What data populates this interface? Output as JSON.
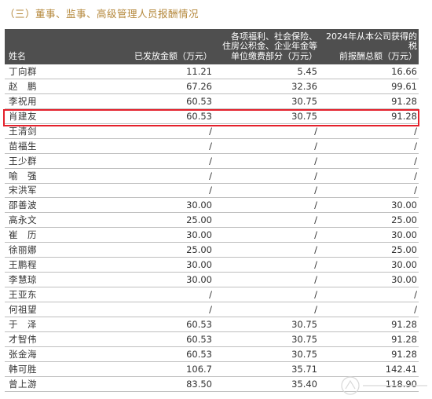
{
  "section_title": "（三）董事、监事、高级管理人员报酬情况",
  "table": {
    "headers": {
      "name": "姓名",
      "paid": "已发放金额（万元）",
      "welfare": [
        "各项福利、社会保险、",
        "住房公积金、企业年金等",
        "单位缴费部分（万元）"
      ],
      "total": [
        "2024年从本公司获得的税",
        "前报酬总额（万元）"
      ]
    },
    "rows": [
      {
        "name": "丁向群",
        "paid": "11.21",
        "welfare": "5.45",
        "total": "16.66"
      },
      {
        "name": "赵　鹏",
        "paid": "67.26",
        "welfare": "32.36",
        "total": "99.61"
      },
      {
        "name": "李祝用",
        "paid": "60.53",
        "welfare": "30.75",
        "total": "91.28"
      },
      {
        "name": "肖建友",
        "paid": "60.53",
        "welfare": "30.75",
        "total": "91.28"
      },
      {
        "name": "王清剑",
        "paid": "/",
        "welfare": "/",
        "total": "/"
      },
      {
        "name": "苗福生",
        "paid": "/",
        "welfare": "/",
        "total": "/"
      },
      {
        "name": "王少群",
        "paid": "/",
        "welfare": "/",
        "total": "/"
      },
      {
        "name": "喻　强",
        "paid": "/",
        "welfare": "/",
        "total": "/"
      },
      {
        "name": "宋洪军",
        "paid": "/",
        "welfare": "/",
        "total": "/"
      },
      {
        "name": "邵善波",
        "paid": "30.00",
        "welfare": "/",
        "total": "30.00"
      },
      {
        "name": "高永文",
        "paid": "25.00",
        "welfare": "/",
        "total": "25.00"
      },
      {
        "name": "崔　历",
        "paid": "30.00",
        "welfare": "/",
        "total": "30.00"
      },
      {
        "name": "徐丽娜",
        "paid": "25.00",
        "welfare": "/",
        "total": "25.00"
      },
      {
        "name": "王鹏程",
        "paid": "30.00",
        "welfare": "/",
        "total": "30.00"
      },
      {
        "name": "李慧琼",
        "paid": "30.00",
        "welfare": "/",
        "total": "30.00"
      },
      {
        "name": "王亚东",
        "paid": "/",
        "welfare": "/",
        "total": "/"
      },
      {
        "name": "何祖望",
        "paid": "/",
        "welfare": "/",
        "total": "/"
      },
      {
        "name": "于　泽",
        "paid": "60.53",
        "welfare": "30.75",
        "total": "91.28"
      },
      {
        "name": "才智伟",
        "paid": "60.53",
        "welfare": "30.75",
        "total": "91.28"
      },
      {
        "name": "张金海",
        "paid": "60.53",
        "welfare": "30.75",
        "total": "91.28"
      },
      {
        "name": "韩可胜",
        "paid": "106.7",
        "welfare": "35.71",
        "total": "142.41"
      },
      {
        "name": "曾上游",
        "paid": "83.50",
        "welfare": "35.40",
        "total": "118.90"
      }
    ],
    "highlighted_row_index": 3
  },
  "colors": {
    "title": "#b4873a",
    "header_bg": "#4f4f4f",
    "highlight": "#e4202b"
  }
}
